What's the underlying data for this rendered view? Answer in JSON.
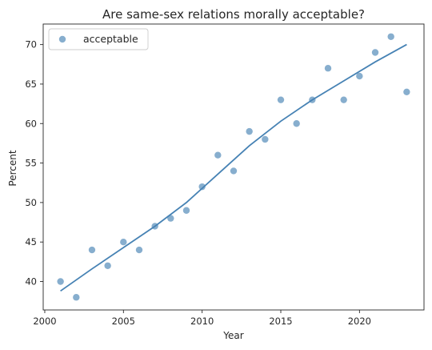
{
  "chart_data": {
    "type": "scatter",
    "title": "Are same-sex relations morally acceptable?",
    "xlabel": "Year",
    "ylabel": "Percent",
    "xlim": [
      1999.9,
      2024.1
    ],
    "ylim": [
      36.4,
      72.6
    ],
    "xticks": [
      2000,
      2005,
      2010,
      2015,
      2020
    ],
    "yticks": [
      40,
      45,
      50,
      55,
      60,
      65,
      70
    ],
    "grid": false,
    "legend_position": "top-left",
    "series": [
      {
        "name": "acceptable",
        "kind": "scatter",
        "color": "#4682b4",
        "x": [
          2001,
          2002,
          2003,
          2004,
          2005,
          2006,
          2007,
          2008,
          2009,
          2010,
          2011,
          2012,
          2013,
          2014,
          2015,
          2016,
          2017,
          2018,
          2019,
          2020,
          2021,
          2022,
          2023
        ],
        "y": [
          40,
          38,
          44,
          42,
          45,
          44,
          47,
          48,
          49,
          52,
          56,
          54,
          59,
          58,
          63,
          60,
          63,
          67,
          63,
          66,
          69,
          71,
          64
        ]
      },
      {
        "kind": "line",
        "color": "#4682b4",
        "x": [
          2001,
          2003,
          2005,
          2007,
          2009,
          2011,
          2013,
          2015,
          2017,
          2019,
          2021,
          2023
        ],
        "y": [
          38.8,
          41.6,
          44.3,
          47.0,
          50.0,
          53.6,
          57.2,
          60.3,
          63.0,
          65.4,
          67.8,
          70.0
        ]
      }
    ]
  }
}
